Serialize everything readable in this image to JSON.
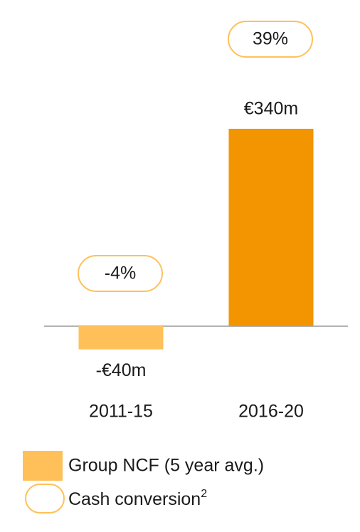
{
  "chart_data": {
    "type": "bar",
    "categories": [
      "2011-15",
      "2016-20"
    ],
    "series": [
      {
        "name": "Group NCF (5 year avg.)",
        "colors": [
          "#FFC05A",
          "#F29500"
        ],
        "values": [
          -40,
          340
        ],
        "value_labels": [
          "-€40m",
          "€340m"
        ]
      }
    ],
    "cash_conversion": {
      "name": "Cash conversion",
      "footnote": "2",
      "color": "#FFC05A",
      "values": [
        -4,
        39
      ],
      "value_labels": [
        "-4%",
        "39%"
      ]
    }
  }
}
